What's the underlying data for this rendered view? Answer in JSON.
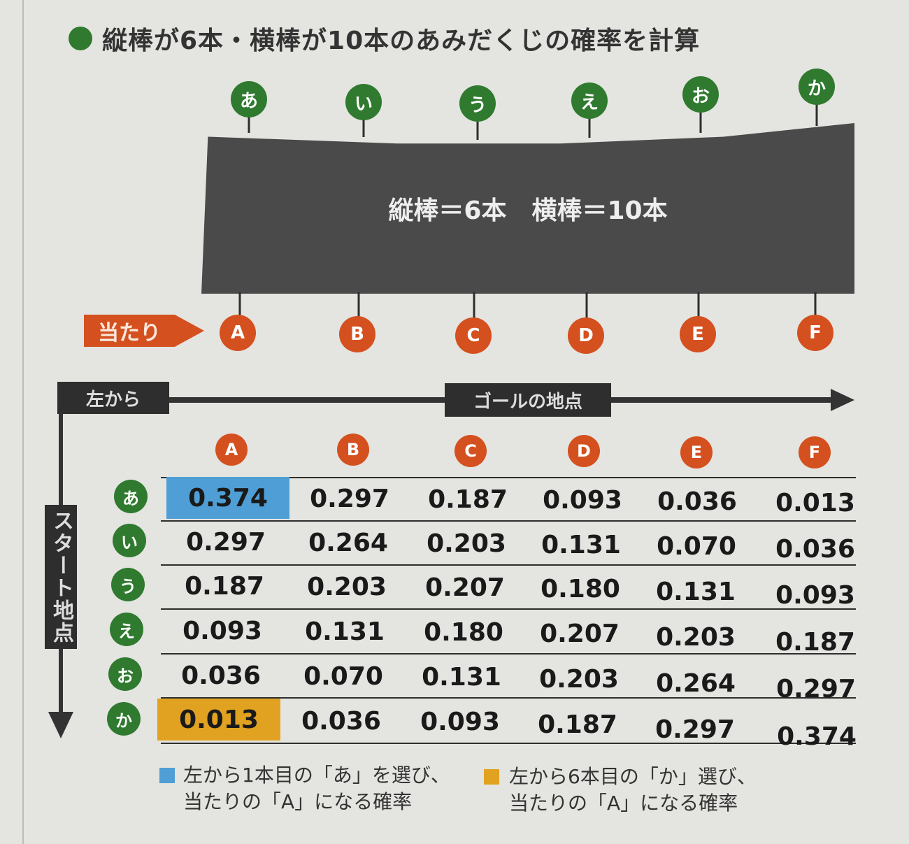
{
  "title": "縦棒が6本・横棒が10本のあみだくじの確率を計算",
  "top_labels": [
    "あ",
    "い",
    "う",
    "え",
    "お",
    "か"
  ],
  "ladder_caption": "縦棒＝6本　横棒＝10本",
  "bottom_labels": [
    "A",
    "B",
    "C",
    "D",
    "E",
    "F"
  ],
  "win_tag": "当たり",
  "axis": {
    "start_from_left": "左から",
    "goal_label": "ゴールの地点",
    "start_label": "スタート地点"
  },
  "table": {
    "columns": [
      "A",
      "B",
      "C",
      "D",
      "E",
      "F"
    ],
    "rows": [
      {
        "label": "あ",
        "values": [
          "0.374",
          "0.297",
          "0.187",
          "0.093",
          "0.036",
          "0.013"
        ]
      },
      {
        "label": "い",
        "values": [
          "0.297",
          "0.264",
          "0.203",
          "0.131",
          "0.070",
          "0.036"
        ]
      },
      {
        "label": "う",
        "values": [
          "0.187",
          "0.203",
          "0.207",
          "0.180",
          "0.131",
          "0.093"
        ]
      },
      {
        "label": "え",
        "values": [
          "0.093",
          "0.131",
          "0.180",
          "0.207",
          "0.203",
          "0.187"
        ]
      },
      {
        "label": "お",
        "values": [
          "0.036",
          "0.070",
          "0.131",
          "0.203",
          "0.264",
          "0.297"
        ]
      },
      {
        "label": "か",
        "values": [
          "0.013",
          "0.036",
          "0.093",
          "0.187",
          "0.297",
          "0.374"
        ]
      }
    ]
  },
  "legend": [
    {
      "color": "#4f9ed6",
      "line1": "左から1本目の「あ」を選び、",
      "line2": "当たりの「A」になる確率"
    },
    {
      "color": "#e0a220",
      "line1": "左から6本目の「か」選び、",
      "line2": "当たりの「A」になる確率"
    }
  ],
  "colors": {
    "green": "#2f7a2f",
    "orange": "#d4501f",
    "dark": "#4a4a4a"
  }
}
